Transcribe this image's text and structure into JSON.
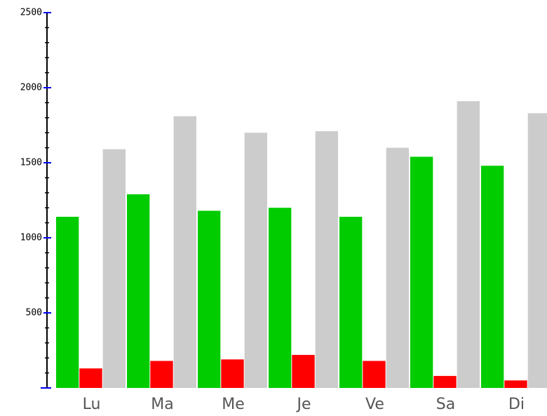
{
  "chart_data": {
    "type": "bar",
    "categories": [
      "Lu",
      "Ma",
      "Me",
      "Je",
      "Ve",
      "Sa",
      "Di"
    ],
    "series": [
      {
        "color": "#00cc00",
        "values": [
          1140,
          1290,
          1180,
          1200,
          1140,
          1540,
          1480
        ]
      },
      {
        "color": "#ff0000",
        "values": [
          130,
          180,
          190,
          220,
          180,
          80,
          50
        ]
      },
      {
        "color": "#cccccc",
        "values": [
          1590,
          1810,
          1700,
          1710,
          1600,
          1910,
          1830
        ]
      }
    ],
    "ylim": [
      0,
      2500
    ],
    "yticks": [
      500,
      1000,
      1500,
      2000,
      2500
    ]
  }
}
